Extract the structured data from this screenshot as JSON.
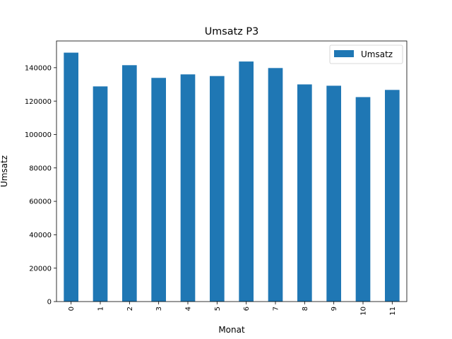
{
  "chart_data": {
    "type": "bar",
    "title": "Umsatz P3",
    "xlabel": "Monat",
    "ylabel": "Umsatz",
    "categories": [
      "0",
      "1",
      "2",
      "3",
      "4",
      "5",
      "6",
      "7",
      "8",
      "9",
      "10",
      "11"
    ],
    "series": [
      {
        "name": "Umsatz",
        "values": [
          149000,
          128800,
          141500,
          133900,
          136000,
          135000,
          143700,
          139800,
          130000,
          129200,
          122400,
          126700
        ],
        "color": "#1f77b4"
      }
    ],
    "ylim": [
      0,
      156000
    ],
    "yticks": [
      0,
      20000,
      40000,
      60000,
      80000,
      100000,
      120000,
      140000
    ],
    "grid": false,
    "legend_position": "top-right"
  }
}
